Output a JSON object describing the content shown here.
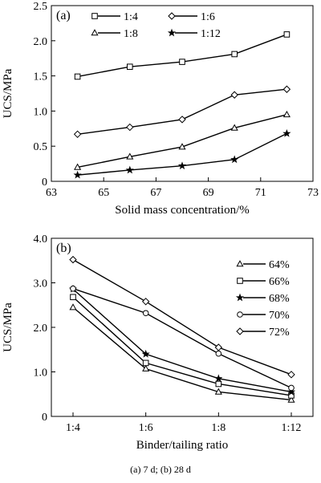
{
  "caption": "(a) 7 d; (b) 28 d",
  "chart_data": [
    {
      "type": "line",
      "panel_label": "(a)",
      "xlabel": "Solid mass concentration/%",
      "ylabel": "UCS/MPa",
      "xlim": [
        63,
        73
      ],
      "ylim": [
        0,
        2.5
      ],
      "x_ticks": [
        63,
        65,
        67,
        69,
        71,
        73
      ],
      "y_ticks": [
        0,
        0.5,
        1.0,
        1.5,
        2.0,
        2.5
      ],
      "y_tick_labels": [
        "0",
        "0.5",
        "1.0",
        "1.5",
        "2.0",
        "2.5"
      ],
      "legend_position": "top",
      "x": [
        64,
        66,
        68,
        70,
        72
      ],
      "series": [
        {
          "name": "1:4",
          "marker": "square",
          "values": [
            1.49,
            1.63,
            1.7,
            1.81,
            2.09
          ]
        },
        {
          "name": "1:6",
          "marker": "diamond",
          "values": [
            0.67,
            0.77,
            0.88,
            1.23,
            1.31
          ]
        },
        {
          "name": "1:8",
          "marker": "triangle",
          "values": [
            0.2,
            0.35,
            0.49,
            0.76,
            0.95
          ]
        },
        {
          "name": "1:12",
          "marker": "star",
          "values": [
            0.09,
            0.16,
            0.22,
            0.31,
            0.68
          ]
        }
      ]
    },
    {
      "type": "line",
      "panel_label": "(b)",
      "xlabel": "Binder/tailing ratio",
      "ylabel": "UCS/MPa",
      "ylim": [
        0,
        4.0
      ],
      "categories": [
        "1:4",
        "1:6",
        "1:8",
        "1:12"
      ],
      "y_ticks": [
        0,
        1.0,
        2.0,
        3.0,
        4.0
      ],
      "y_tick_labels": [
        "0",
        "1.0",
        "2.0",
        "3.0",
        "4.0"
      ],
      "legend_position": "top-right",
      "series": [
        {
          "name": "64%",
          "marker": "triangle",
          "values": [
            2.45,
            1.07,
            0.55,
            0.37
          ]
        },
        {
          "name": "66%",
          "marker": "square",
          "values": [
            2.68,
            1.2,
            0.73,
            0.47
          ]
        },
        {
          "name": "68%",
          "marker": "star",
          "values": [
            2.86,
            1.4,
            0.85,
            0.55
          ]
        },
        {
          "name": "70%",
          "marker": "circle",
          "values": [
            2.87,
            2.32,
            1.41,
            0.64
          ]
        },
        {
          "name": "72%",
          "marker": "diamond",
          "values": [
            3.52,
            2.58,
            1.55,
            0.94
          ]
        }
      ]
    }
  ]
}
